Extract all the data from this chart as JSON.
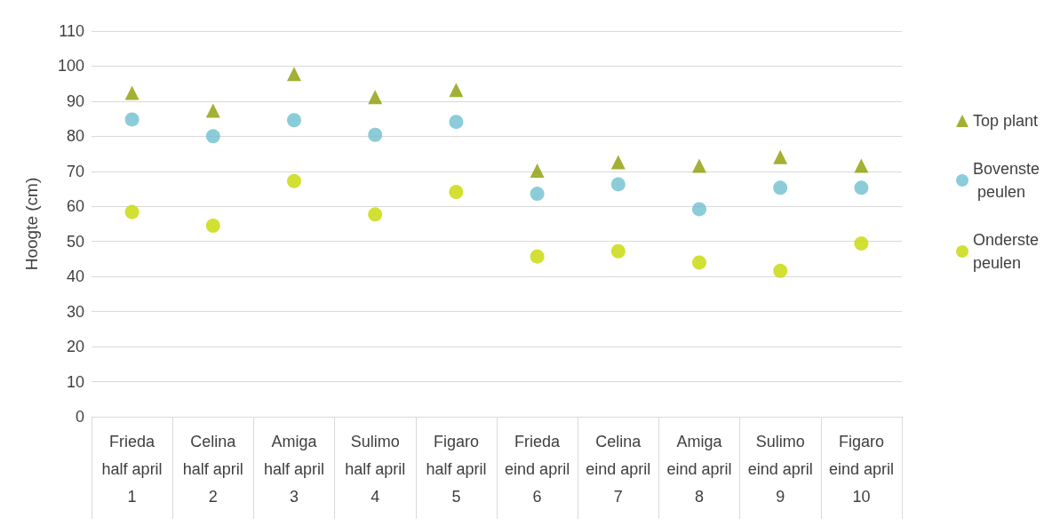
{
  "chart_data": {
    "type": "scatter",
    "ylabel": "Hoogte (cm)",
    "categories": [
      "Frieda\nhalf april\n1",
      "Celina\nhalf april\n2",
      "Amiga\nhalf april\n3",
      "Sulimo\nhalf april\n4",
      "Figaro\nhalf april\n5",
      "Frieda\neind april\n6",
      "Celina\neind april\n7",
      "Amiga\neind april\n8",
      "Sulimo\neind april\n9",
      "Figaro\neind april\n10"
    ],
    "series": [
      {
        "name": "Top plant",
        "color": "#8c9c00",
        "marker": "triangle",
        "values": [
          92.4,
          87.3,
          97.8,
          91.2,
          93.2,
          70.2,
          72.6,
          71.6,
          74.1,
          71.6
        ]
      },
      {
        "name": "Bovenste peulen",
        "color": "#6fbfd0",
        "marker": "circle",
        "values": [
          84.8,
          80,
          84.6,
          80.4,
          84.1,
          63.6,
          66.3,
          59.2,
          65.3,
          65.3
        ]
      },
      {
        "name": "Onderste peulen",
        "color": "#c5d800",
        "marker": "circle",
        "values": [
          58.4,
          54.5,
          67.2,
          57.7,
          64.1,
          45.7,
          47.2,
          44,
          41.6,
          49.4
        ]
      }
    ],
    "ylim": [
      0,
      110
    ],
    "yticks": [
      0,
      10,
      20,
      30,
      40,
      50,
      60,
      70,
      80,
      90,
      100,
      110
    ],
    "grid": "y",
    "legend": "right"
  }
}
